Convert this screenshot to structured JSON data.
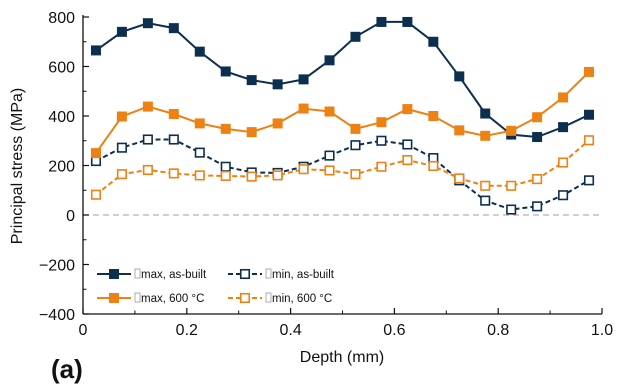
{
  "panel_label": "(a)",
  "chart_data": {
    "type": "line",
    "xlabel": "Depth (mm)",
    "ylabel": "Principal stress (MPa)",
    "xlim": [
      0,
      1.0
    ],
    "ylim": [
      -400,
      800
    ],
    "xticks": [
      0,
      0.2,
      0.4,
      0.6,
      0.8,
      1.0
    ],
    "xtick_labels": [
      "0",
      "0.2",
      "0.4",
      "0.6",
      "0.8",
      "1.0"
    ],
    "yticks": [
      -400,
      -200,
      0,
      200,
      400,
      600,
      800
    ],
    "ytick_labels": [
      "−400",
      "−200",
      "0",
      "200",
      "400",
      "600",
      "800"
    ],
    "grid": false,
    "zero_line": true,
    "legend_position": "lower-left",
    "x": [
      0.025,
      0.075,
      0.125,
      0.175,
      0.225,
      0.275,
      0.325,
      0.375,
      0.425,
      0.475,
      0.525,
      0.575,
      0.625,
      0.675,
      0.725,
      0.775,
      0.825,
      0.875,
      0.925,
      0.975
    ],
    "series": [
      {
        "name": "max, as-built",
        "color": "#0d2f4f",
        "dashed": false,
        "filled": true,
        "values": [
          665,
          740,
          775,
          755,
          660,
          580,
          545,
          528,
          548,
          625,
          720,
          780,
          780,
          700,
          560,
          410,
          325,
          315,
          355,
          405
        ]
      },
      {
        "name": "min, as-built",
        "color": "#0d2f4f",
        "dashed": true,
        "filled": false,
        "values": [
          218,
          272,
          305,
          305,
          252,
          195,
          172,
          170,
          195,
          240,
          282,
          300,
          285,
          230,
          140,
          58,
          22,
          35,
          80,
          140
        ]
      },
      {
        "name": "max, 600 °C",
        "color": "#ee8113",
        "dashed": false,
        "filled": true,
        "values": [
          250,
          398,
          438,
          408,
          370,
          348,
          335,
          370,
          430,
          418,
          348,
          375,
          428,
          400,
          342,
          320,
          340,
          395,
          475,
          578
        ]
      },
      {
        "name": "min, 600 °C",
        "color": "#ee8113",
        "dashed": true,
        "filled": false,
        "values": [
          82,
          165,
          182,
          168,
          160,
          158,
          155,
          160,
          185,
          180,
          165,
          195,
          222,
          198,
          148,
          118,
          118,
          145,
          212,
          302
        ]
      }
    ]
  }
}
